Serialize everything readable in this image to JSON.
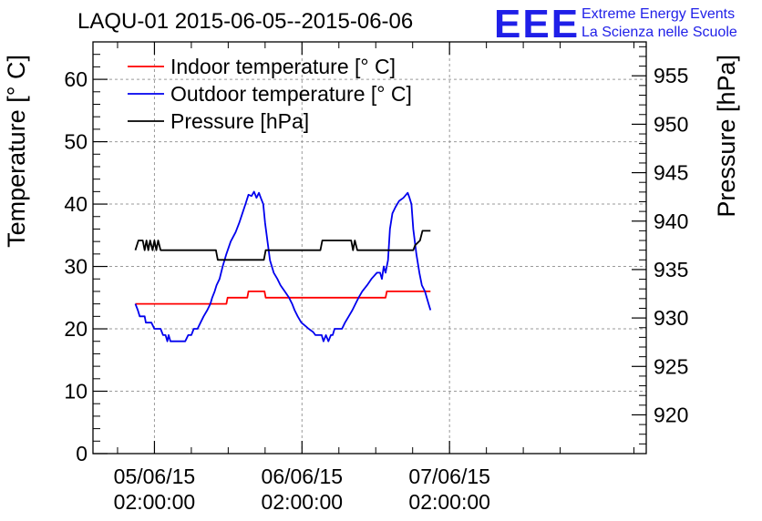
{
  "chart_data": {
    "type": "line",
    "title": "LAQU-01 2015-06-05--2015-06-06",
    "brand": {
      "logo": "EEE",
      "line1": "Extreme Energy Events",
      "line2": "La Scienza nelle Scuole",
      "color": "#1f1fe8"
    },
    "ylabel_left": "Temperature [° C]",
    "ylabel_right": "Pressure [hPa]",
    "ylim_left": [
      0,
      66
    ],
    "ylim_right": [
      916,
      958.5
    ],
    "xlim_hours": [
      -10,
      80
    ],
    "grid": true,
    "legend_position": "top-left",
    "x_ticks": [
      {
        "hour": 0,
        "line1": "05/06/15",
        "line2": "02:00:00"
      },
      {
        "hour": 24,
        "line1": "06/06/15",
        "line2": "02:00:00"
      },
      {
        "hour": 48,
        "line1": "07/06/15",
        "line2": "02:00:00"
      }
    ],
    "y_ticks_left": [
      0,
      10,
      20,
      30,
      40,
      50,
      60
    ],
    "y_ticks_right": [
      920,
      925,
      930,
      935,
      940,
      945,
      950,
      955
    ],
    "series": [
      {
        "name": "Indoor temperature [° C]",
        "color": "#ff0000",
        "axis": "left",
        "points": [
          [
            -3.1,
            24
          ],
          [
            11.7,
            24
          ],
          [
            11.9,
            25
          ],
          [
            15.1,
            25
          ],
          [
            15.3,
            26
          ],
          [
            17.9,
            26
          ],
          [
            18.1,
            25
          ],
          [
            37.6,
            25
          ],
          [
            37.8,
            26
          ],
          [
            44.9,
            26
          ]
        ]
      },
      {
        "name": "Outdoor temperature [° C]",
        "color": "#0000ee",
        "axis": "left",
        "points": [
          [
            -3.1,
            24
          ],
          [
            -2.7,
            23
          ],
          [
            -2.4,
            22
          ],
          [
            -1.6,
            22
          ],
          [
            -1.4,
            21
          ],
          [
            -0.5,
            21
          ],
          [
            0,
            20
          ],
          [
            1,
            20
          ],
          [
            1.4,
            19
          ],
          [
            1.8,
            19
          ],
          [
            2.1,
            18
          ],
          [
            2.3,
            19
          ],
          [
            2.6,
            18
          ],
          [
            5,
            18
          ],
          [
            5.5,
            19
          ],
          [
            6,
            19
          ],
          [
            6.4,
            20
          ],
          [
            7,
            20
          ],
          [
            7.5,
            21
          ],
          [
            8,
            22
          ],
          [
            8.6,
            23
          ],
          [
            9.1,
            24
          ],
          [
            9.4,
            25
          ],
          [
            9.8,
            26
          ],
          [
            10.1,
            27
          ],
          [
            10.6,
            28
          ],
          [
            11.1,
            30
          ],
          [
            11.7,
            32
          ],
          [
            12.4,
            34
          ],
          [
            13.2,
            35.5
          ],
          [
            13.8,
            37
          ],
          [
            14.3,
            38.5
          ],
          [
            14.8,
            40
          ],
          [
            15.3,
            41.5
          ],
          [
            15.8,
            41.3
          ],
          [
            16.2,
            42
          ],
          [
            16.6,
            41
          ],
          [
            17,
            41.8
          ],
          [
            17.3,
            41
          ],
          [
            17.7,
            40
          ],
          [
            18,
            37
          ],
          [
            18.4,
            34
          ],
          [
            18.8,
            31
          ],
          [
            19.4,
            29
          ],
          [
            20,
            28
          ],
          [
            20.5,
            27
          ],
          [
            21.2,
            26
          ],
          [
            21.9,
            25
          ],
          [
            22.4,
            24
          ],
          [
            22.8,
            23
          ],
          [
            23.3,
            22
          ],
          [
            23.9,
            21
          ],
          [
            24.5,
            20.5
          ],
          [
            25.1,
            20
          ],
          [
            25.8,
            19.5
          ],
          [
            26.2,
            19
          ],
          [
            27.2,
            19
          ],
          [
            27.5,
            18
          ],
          [
            27.9,
            19
          ],
          [
            28.3,
            18
          ],
          [
            28.7,
            19
          ],
          [
            29,
            19
          ],
          [
            29.3,
            20
          ],
          [
            30.5,
            20
          ],
          [
            31,
            21
          ],
          [
            31.6,
            22
          ],
          [
            32.2,
            23
          ],
          [
            32.7,
            24
          ],
          [
            33.2,
            25
          ],
          [
            33.8,
            26
          ],
          [
            34.6,
            27
          ],
          [
            35.3,
            28
          ],
          [
            36.2,
            29
          ],
          [
            36.7,
            29
          ],
          [
            37,
            28
          ],
          [
            37.3,
            30
          ],
          [
            37.6,
            29
          ],
          [
            38,
            31
          ],
          [
            38.3,
            36
          ],
          [
            38.7,
            38.5
          ],
          [
            39.2,
            39.5
          ],
          [
            39.8,
            40.5
          ],
          [
            40.5,
            41
          ],
          [
            41.2,
            41.8
          ],
          [
            41.5,
            41
          ],
          [
            41.8,
            40
          ],
          [
            42.1,
            36
          ],
          [
            42.6,
            32
          ],
          [
            43.1,
            29
          ],
          [
            43.5,
            27
          ],
          [
            44,
            26
          ],
          [
            44.3,
            25
          ],
          [
            44.6,
            24
          ],
          [
            44.9,
            23
          ]
        ]
      },
      {
        "name": "Pressure [hPa]",
        "color": "#000000",
        "axis": "right",
        "points": [
          [
            -3.1,
            937
          ],
          [
            -2.6,
            938
          ],
          [
            -1.9,
            938
          ],
          [
            -1.6,
            937
          ],
          [
            -1.3,
            938
          ],
          [
            -1,
            937
          ],
          [
            -0.7,
            938
          ],
          [
            -0.3,
            937
          ],
          [
            0,
            938
          ],
          [
            0.3,
            937
          ],
          [
            0.6,
            938
          ],
          [
            1,
            937
          ],
          [
            10,
            937
          ],
          [
            10.3,
            936
          ],
          [
            17.8,
            936
          ],
          [
            18.1,
            937
          ],
          [
            27,
            937
          ],
          [
            27.3,
            938
          ],
          [
            32,
            938
          ],
          [
            32.3,
            937
          ],
          [
            32.6,
            938
          ],
          [
            33,
            937
          ],
          [
            42.1,
            937
          ],
          [
            42.4,
            937.5
          ],
          [
            43.2,
            938
          ],
          [
            43.6,
            939
          ],
          [
            44.9,
            939
          ]
        ]
      }
    ]
  }
}
